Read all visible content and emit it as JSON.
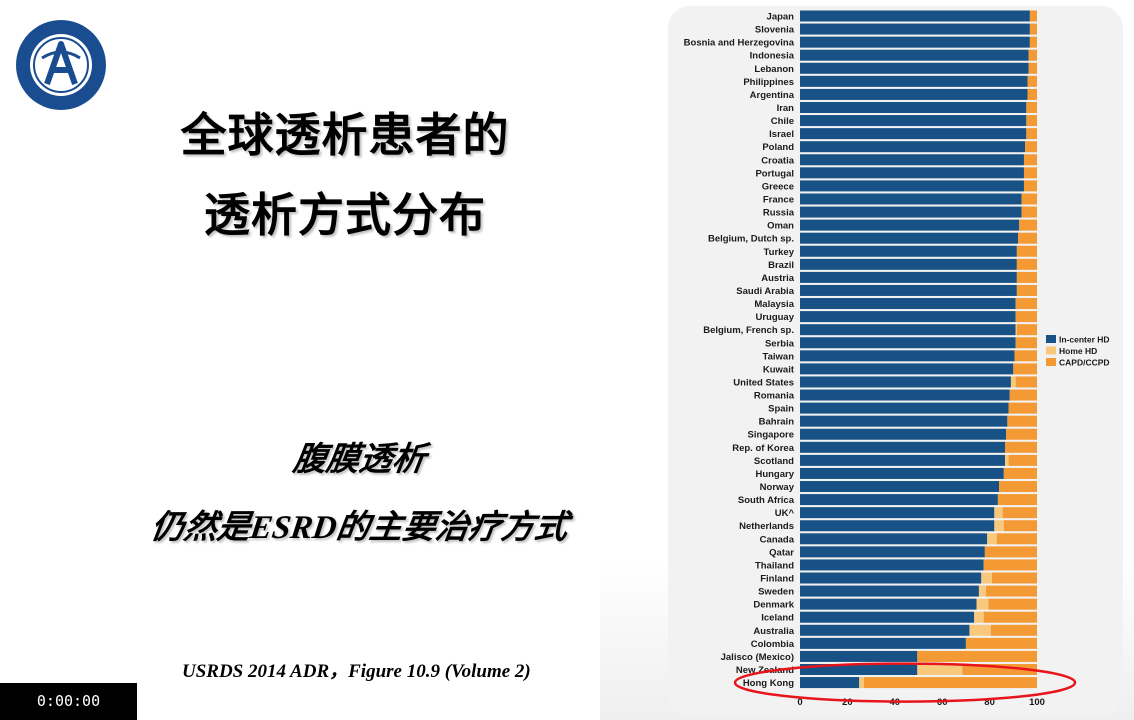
{
  "slide": {
    "title_line1": "全球透析患者的",
    "title_line2": "透析方式分布",
    "subtitle_line1": "腹膜透析",
    "subtitle_line2": "仍然是ESRD的主要治疗方式",
    "source": "USRDS 2014 ADR，Figure 10.9 (Volume 2)",
    "timer": "0:00:00"
  },
  "colors": {
    "in_center": "#175185",
    "home_hd": "#f8c87c",
    "capd": "#f39a34",
    "highlight": "#e8141b"
  },
  "chart_data": {
    "type": "bar",
    "orientation": "horizontal",
    "stacked": true,
    "legend": {
      "placement": "right",
      "entries": [
        "In-center HD",
        "Home HD",
        "CAPD/CCPD"
      ]
    },
    "xlim": [
      0,
      100
    ],
    "xticks": [
      0,
      20,
      40,
      60,
      80,
      100
    ],
    "highlighted_category": "Hong Kong",
    "categories": [
      "Japan",
      "Slovenia",
      "Bosnia and Herzegovina",
      "Indonesia",
      "Lebanon",
      "Philippines",
      "Argentina",
      "Iran",
      "Chile",
      "Israel",
      "Poland",
      "Croatia",
      "Portugal",
      "Greece",
      "France",
      "Russia",
      "Oman",
      "Belgium, Dutch sp.",
      "Turkey",
      "Brazil",
      "Austria",
      "Saudi Arabia",
      "Malaysia",
      "Uruguay",
      "Belgium, French sp.",
      "Serbia",
      "Taiwan",
      "Kuwait",
      "United States",
      "Romania",
      "Spain",
      "Bahrain",
      "Singapore",
      "Rep. of Korea",
      "Scotland",
      "Hungary",
      "Norway",
      "South Africa",
      "UK^",
      "Netherlands",
      "Canada",
      "Qatar",
      "Thailand",
      "Finland",
      "Sweden",
      "Denmark",
      "Iceland",
      "Australia",
      "Colombia",
      "Jalisco (Mexico)",
      "New Zealand",
      "Hong Kong"
    ],
    "series": [
      {
        "name": "In-center HD",
        "values": [
          97,
          97,
          97,
          96.5,
          96.5,
          96,
          96,
          95.5,
          95.5,
          95.5,
          95,
          94.5,
          94.5,
          94.5,
          93.5,
          93.5,
          92.5,
          92,
          91.5,
          91.5,
          91.5,
          91.5,
          91,
          91,
          91,
          91,
          90.5,
          90,
          89,
          88.5,
          88,
          87.5,
          87,
          86.5,
          86.5,
          86,
          84,
          83.5,
          82,
          82,
          79,
          78,
          77.5,
          76.5,
          75.5,
          74.5,
          73.5,
          71.5,
          70,
          49.5,
          49.5,
          25
        ]
      },
      {
        "name": "Home HD",
        "values": [
          0,
          0,
          0,
          0,
          0,
          0,
          0,
          0,
          0,
          0,
          0,
          0,
          0,
          0,
          0,
          0,
          0,
          0,
          0,
          0,
          0,
          0,
          0,
          0,
          0.5,
          0,
          0,
          0,
          2,
          0,
          0,
          0,
          0,
          0,
          1.5,
          0,
          0,
          0,
          3.5,
          4,
          4,
          0,
          0,
          4.5,
          3,
          5,
          4,
          9,
          0,
          0,
          19,
          2
        ]
      },
      {
        "name": "CAPD/CCPD",
        "values": [
          3,
          3,
          3,
          3.5,
          3.5,
          4,
          4,
          4.5,
          4.5,
          4.5,
          5,
          5.5,
          5.5,
          5.5,
          6.5,
          6.5,
          7.5,
          8,
          8.5,
          8.5,
          8.5,
          8.5,
          9,
          9,
          8.5,
          9,
          9.5,
          10,
          9,
          11.5,
          12,
          12.5,
          13,
          13.5,
          12,
          14,
          16,
          16.5,
          14.5,
          14,
          17,
          22,
          22.5,
          19,
          21.5,
          20.5,
          22.5,
          19.5,
          30,
          50.5,
          31.5,
          73
        ]
      }
    ]
  }
}
